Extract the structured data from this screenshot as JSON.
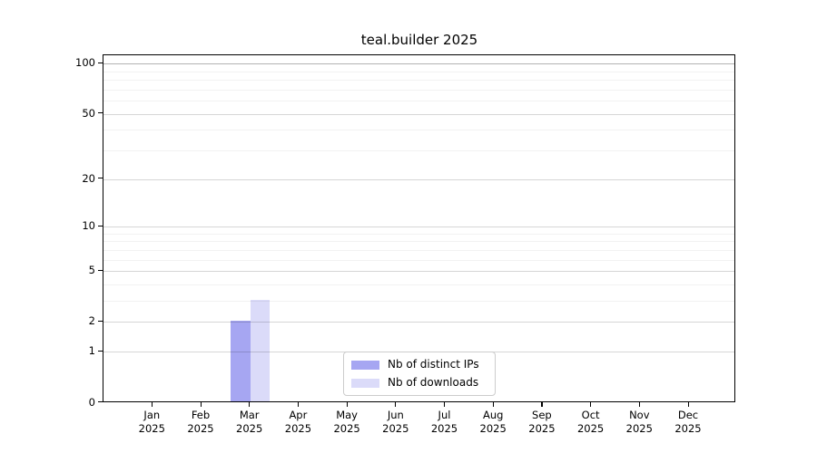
{
  "title": "teal.builder 2025",
  "chart_data": {
    "type": "bar",
    "title": "teal.builder 2025",
    "categories": [
      "Jan 2025",
      "Feb 2025",
      "Mar 2025",
      "Apr 2025",
      "May 2025",
      "Jun 2025",
      "Jul 2025",
      "Aug 2025",
      "Sep 2025",
      "Oct 2025",
      "Nov 2025",
      "Dec 2025"
    ],
    "series": [
      {
        "name": "Nb of distinct IPs",
        "color": "#a6a6f2",
        "values": [
          0,
          0,
          2,
          0,
          0,
          0,
          0,
          0,
          0,
          0,
          0,
          0
        ]
      },
      {
        "name": "Nb of downloads",
        "color": "#dbdbf9",
        "values": [
          0,
          0,
          3,
          0,
          0,
          0,
          0,
          0,
          0,
          0,
          0,
          0
        ]
      }
    ],
    "xlabel": "",
    "ylabel": "",
    "yscale": "log1p",
    "ylim": [
      0,
      112
    ],
    "y_tick_values": [
      0,
      1,
      2,
      5,
      10,
      20,
      50,
      100
    ],
    "y_tick_labels": [
      "0",
      "1",
      "2",
      "5",
      "10",
      "20",
      "50",
      "100"
    ],
    "y_minor_gridlines": [
      3,
      4,
      6,
      7,
      8,
      9,
      30,
      40,
      60,
      70,
      80,
      90
    ],
    "grid": true,
    "legend_position": "bottom-center"
  },
  "legend": {
    "entries": [
      {
        "label": "Nb of distinct IPs",
        "color": "#a6a6f2"
      },
      {
        "label": "Nb of downloads",
        "color": "#dbdbf9"
      }
    ]
  },
  "colors": {
    "bar_ips": "#a6a6f2",
    "bar_downloads": "#dbdbf9",
    "grid_major": "#d6d6d6",
    "grid_top": "#b3b3b3",
    "axis": "#000000",
    "background": "#ffffff"
  }
}
